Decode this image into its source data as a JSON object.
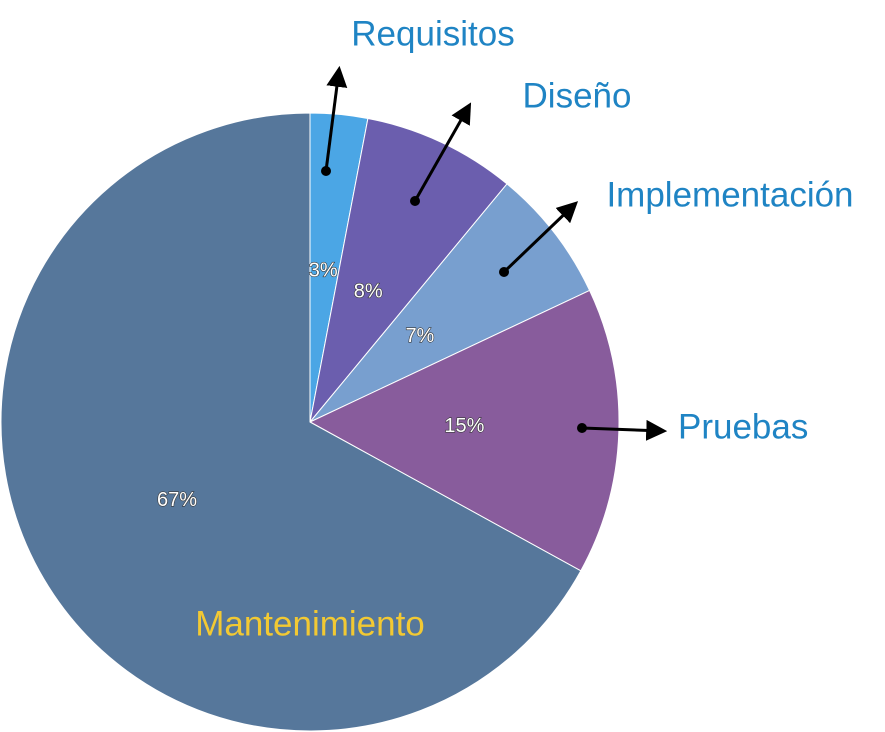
{
  "chart_data": {
    "type": "pie",
    "start": "top",
    "direction": "clockwise",
    "legend": "none",
    "slices": [
      {
        "name": "Requisitos",
        "value": 3,
        "label": "3%",
        "color": "#4BA6E5",
        "label_color": "#1F84C4"
      },
      {
        "name": "Diseño",
        "value": 8,
        "label": "8%",
        "color": "#6B5EAE",
        "label_color": "#1F84C4"
      },
      {
        "name": "Implementación",
        "value": 7,
        "label": "7%",
        "color": "#789FCF",
        "label_color": "#1F84C4"
      },
      {
        "name": "Pruebas",
        "value": 15,
        "label": "15%",
        "color": "#885C9C",
        "label_color": "#1F84C4"
      },
      {
        "name": "Mantenimiento",
        "value": 67,
        "label": "67%",
        "color": "#56779B",
        "label_color": "#F2C933"
      }
    ]
  }
}
